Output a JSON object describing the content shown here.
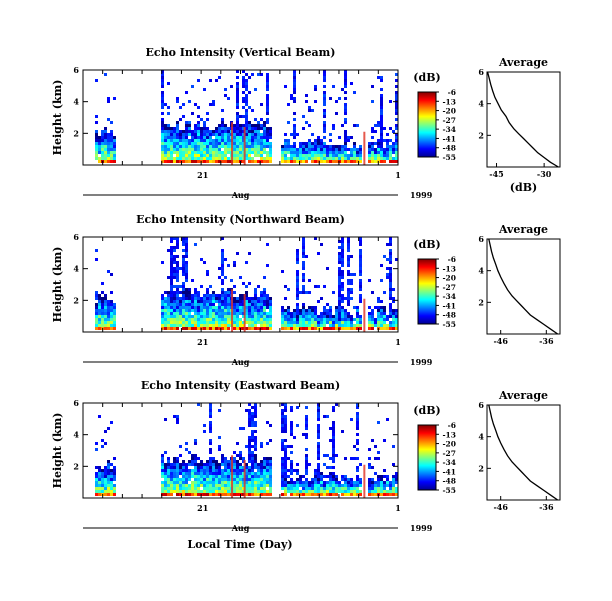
{
  "figure": {
    "shared_xlabel": "Local Time (Day)",
    "shared_ylabel": "Height (km)",
    "month_label": "Aug",
    "year_label": "1999",
    "x_tick_labels": [
      "21",
      "1"
    ],
    "colorbar_unit": "(dB)",
    "colorbar_ticks": [
      "-6",
      "-13",
      "-20",
      "-27",
      "-34",
      "-41",
      "-48",
      "-55"
    ],
    "avg_title": "Average",
    "avg_xlabel": "(dB)"
  },
  "chart_data": [
    {
      "type": "heatmap",
      "title": "Echo Intensity (Vertical Beam)",
      "ylabel": "Height (km)",
      "y_tick_labels": [
        "2",
        "4",
        "6"
      ],
      "ylim": [
        0,
        6
      ],
      "colorbar": {
        "label": "(dB)",
        "range": [
          -55,
          -6
        ],
        "ticks": [
          -6,
          -13,
          -20,
          -27,
          -34,
          -41,
          -48,
          -55
        ]
      },
      "data_gaps": [
        "before day ~17.5",
        "~18.2 to ~19.3",
        "~22.2 to ~22.5",
        "~29.4 to ~29.6"
      ]
    },
    {
      "type": "line",
      "title": "Average",
      "xlabel": "(dB)",
      "x_tick_labels": [
        "-45",
        "-30"
      ],
      "xlim": [
        -48,
        -25
      ],
      "y_tick_labels": [
        "2",
        "4",
        "6"
      ],
      "ylim": [
        0,
        6
      ],
      "x": [
        -25.5,
        -28,
        -30,
        -32,
        -33.5,
        -35,
        -36.5,
        -38,
        -39.5,
        -41,
        -42,
        -43.5,
        -44.5,
        -45.5,
        -46.2,
        -46.8,
        -47.3,
        -47.8
      ],
      "y": [
        0,
        0.3,
        0.6,
        0.9,
        1.2,
        1.5,
        1.8,
        2.1,
        2.4,
        2.8,
        3.2,
        3.6,
        4.0,
        4.4,
        4.8,
        5.2,
        5.6,
        6.0
      ]
    },
    {
      "type": "heatmap",
      "title": "Echo Intensity (Northward Beam)",
      "ylabel": "Height (km)",
      "y_tick_labels": [
        "2",
        "4",
        "6"
      ],
      "ylim": [
        0,
        6
      ],
      "colorbar": {
        "label": "(dB)",
        "range": [
          -55,
          -6
        ],
        "ticks": [
          -6,
          -13,
          -20,
          -27,
          -34,
          -41,
          -48,
          -55
        ]
      },
      "data_gaps": [
        "before day ~17.5",
        "~18.2 to ~19.3",
        "~22.2 to ~22.5",
        "~29.4 to ~29.6"
      ]
    },
    {
      "type": "line",
      "title": "Average",
      "xlabel": "(dB)",
      "x_tick_labels": [
        "-46",
        "-36"
      ],
      "xlim": [
        -49,
        -33
      ],
      "y_tick_labels": [
        "2",
        "4",
        "6"
      ],
      "ylim": [
        0,
        6
      ],
      "x": [
        -33.5,
        -35,
        -36.5,
        -38,
        -39.5,
        -40.5,
        -41.5,
        -42.5,
        -43.5,
        -44.5,
        -45.3,
        -46,
        -46.6,
        -47.1,
        -47.6,
        -48,
        -48.3,
        -48.6
      ],
      "y": [
        0,
        0.3,
        0.6,
        0.9,
        1.2,
        1.5,
        1.8,
        2.1,
        2.4,
        2.8,
        3.2,
        3.6,
        4.0,
        4.4,
        4.8,
        5.2,
        5.6,
        6.0
      ]
    },
    {
      "type": "heatmap",
      "title": "Echo Intensity (Eastward Beam)",
      "ylabel": "Height (km)",
      "y_tick_labels": [
        "2",
        "4",
        "6"
      ],
      "ylim": [
        0,
        6
      ],
      "colorbar": {
        "label": "(dB)",
        "range": [
          -55,
          -6
        ],
        "ticks": [
          -6,
          -13,
          -20,
          -27,
          -34,
          -41,
          -48,
          -55
        ]
      },
      "data_gaps": [
        "before day ~17.5",
        "~18.2 to ~19.3",
        "~22.2 to ~22.5",
        "~29.4 to ~29.6"
      ]
    },
    {
      "type": "line",
      "title": "Average",
      "xlabel": "(dB)",
      "x_tick_labels": [
        "-46",
        "-36"
      ],
      "xlim": [
        -49,
        -33
      ],
      "y_tick_labels": [
        "2",
        "4",
        "6"
      ],
      "ylim": [
        0,
        6
      ],
      "x": [
        -33.5,
        -35,
        -36.5,
        -38,
        -39.5,
        -40.5,
        -41.5,
        -42.5,
        -43.5,
        -44.5,
        -45.3,
        -46,
        -46.6,
        -47.1,
        -47.6,
        -48,
        -48.3,
        -48.6
      ],
      "y": [
        0,
        0.3,
        0.6,
        0.9,
        1.2,
        1.5,
        1.8,
        2.1,
        2.4,
        2.8,
        3.2,
        3.6,
        4.0,
        4.4,
        4.8,
        5.2,
        5.6,
        6.0
      ]
    }
  ]
}
